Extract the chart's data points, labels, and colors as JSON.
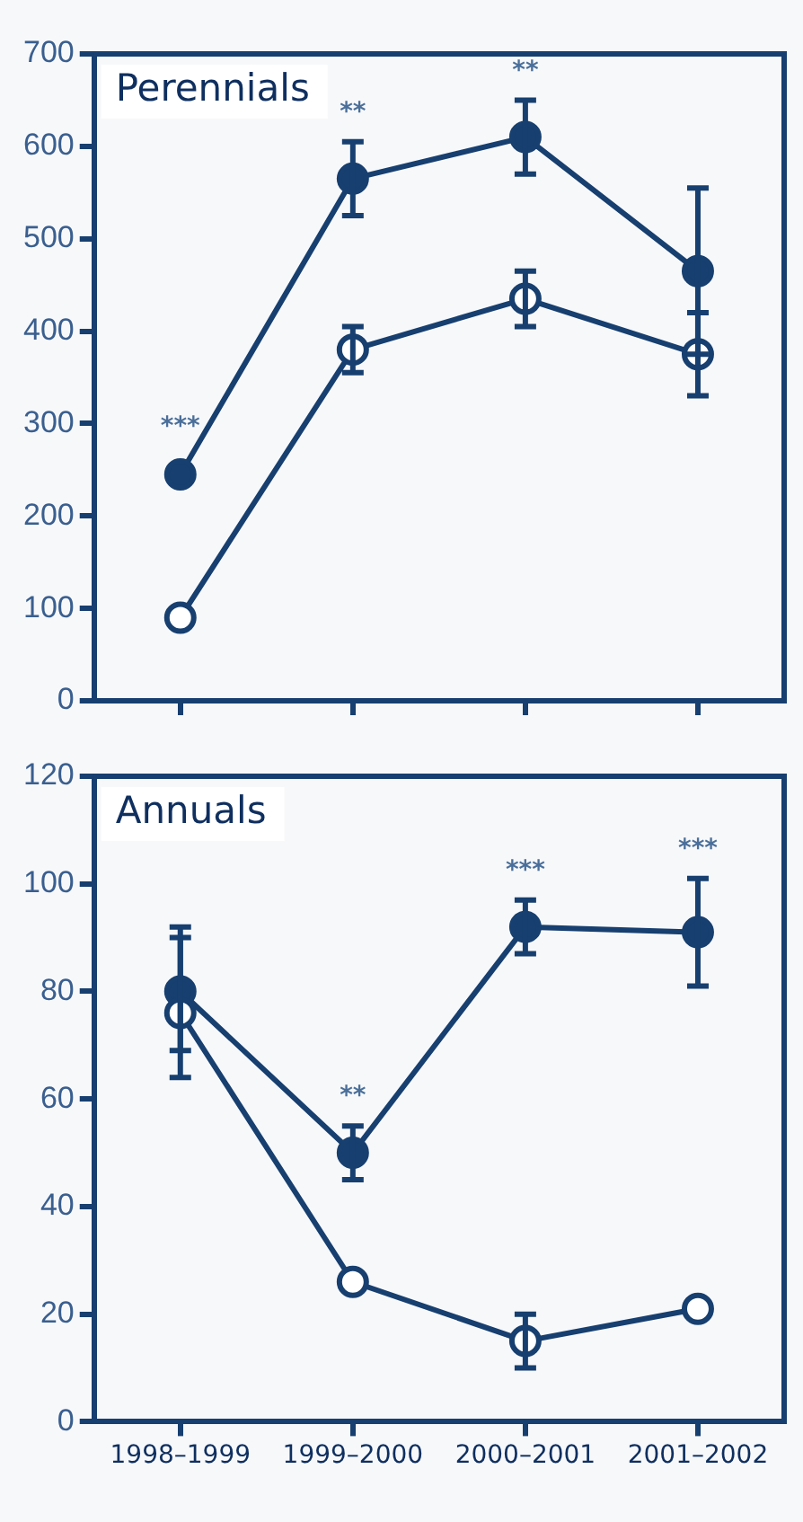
{
  "chart_data": [
    {
      "type": "line",
      "title": "Perennials",
      "categories": [
        "1998–1999",
        "1999–2000",
        "2000–2001",
        "2001–2002"
      ],
      "tick_labels": "y",
      "ylim": [
        0,
        700
      ],
      "yticks": [
        0,
        100,
        200,
        300,
        400,
        500,
        600,
        700
      ],
      "grid": false,
      "legend": false,
      "marker": "circle",
      "line_style": "solid",
      "series": [
        {
          "color": "#173f6f",
          "values": [
            245,
            565,
            610,
            465
          ],
          "errors": [
            null,
            40,
            40,
            90
          ]
        },
        {
          "color": "#173f6f",
          "values": [
            90,
            380,
            435,
            375
          ],
          "errors": [
            null,
            25,
            30,
            45
          ]
        }
      ],
      "annotations": [
        {
          "text": "***",
          "x": "1998–1999",
          "y": 245
        },
        {
          "text": "**",
          "x": "1999–2000",
          "y": 565
        },
        {
          "text": "**",
          "x": "2000–2001",
          "y": 610
        }
      ]
    },
    {
      "type": "line",
      "title": "Annuals",
      "categories": [
        "1998–1999",
        "1999–2000",
        "2000–2001",
        "2001–2002"
      ],
      "ylim": [
        0,
        120
      ],
      "yticks": [
        0,
        20,
        40,
        60,
        80,
        100,
        120
      ],
      "grid": false,
      "legend": false,
      "marker": "circle",
      "line_style": "solid",
      "series": [
        {
          "color": "#173f6f",
          "values": [
            80,
            50,
            92,
            91
          ],
          "errors": [
            [
              69,
              92
            ],
            5,
            5,
            10
          ]
        },
        {
          "color": "#173f6f",
          "values": [
            76,
            26,
            15,
            21
          ],
          "errors": [
            [
              64,
              90
            ],
            null,
            5,
            null
          ]
        }
      ],
      "annotations": [
        {
          "text": "**",
          "x": "1999–2000",
          "y": 50
        },
        {
          "text": "***",
          "x": "2000–2001",
          "y": 92
        },
        {
          "text": "***",
          "x": "2001–2002",
          "y": 91
        }
      ]
    }
  ]
}
